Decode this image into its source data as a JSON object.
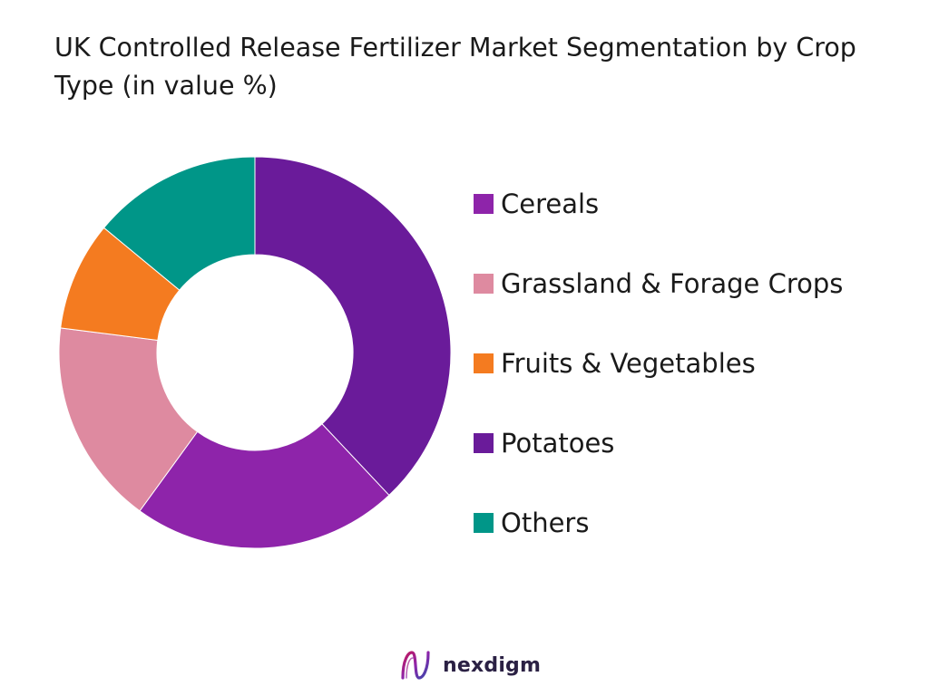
{
  "chart_data": {
    "type": "pie",
    "title": "UK Controlled Release Fertilizer Market Segmentation by Crop Type (in value %)",
    "categories": [
      "Cereals",
      "Grassland & Forage Crops",
      "Fruits & Vegetables",
      "Potatoes",
      "Others"
    ],
    "values": [
      22,
      17,
      9,
      38,
      14
    ],
    "colors": [
      "#8e24aa",
      "#de8aa0",
      "#f47b20",
      "#6a1b9a",
      "#009688"
    ],
    "slice_order_clockwise_from_top": [
      "Potatoes",
      "Cereals",
      "Grassland & Forage Crops",
      "Fruits & Vegetables",
      "Others"
    ],
    "donut": true,
    "legend_position": "right"
  },
  "brand": {
    "name": "nexdigm",
    "logo_icon": "nexdigm-logo-icon"
  }
}
